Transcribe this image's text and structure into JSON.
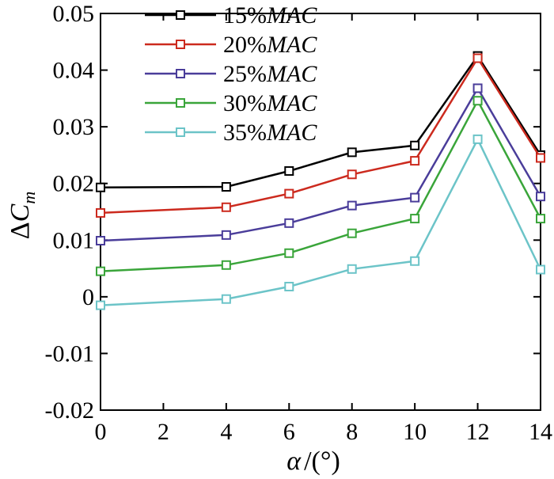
{
  "chart_data": {
    "type": "line",
    "title": "",
    "xlabel_symbol": "α",
    "xlabel_unit": "/(°)",
    "ylabel_prefix": "Δ",
    "ylabel_main": "C",
    "ylabel_sub": "m",
    "xlim": [
      0,
      14
    ],
    "ylim": [
      -0.02,
      0.05
    ],
    "xticks": [
      0,
      2,
      4,
      6,
      8,
      10,
      12,
      14
    ],
    "xtick_labels": [
      "0",
      "2",
      "4",
      "6",
      "8",
      "10",
      "12",
      "14"
    ],
    "yticks": [
      -0.02,
      -0.01,
      0,
      0.01,
      0.02,
      0.03,
      0.04,
      0.05
    ],
    "ytick_labels": [
      "-0.02",
      "-0.01",
      "0",
      "0.01",
      "0.02",
      "0.03",
      "0.04",
      "0.05"
    ],
    "grid": false,
    "legend_position": "top-left",
    "x": [
      0,
      4,
      6,
      8,
      10,
      12,
      14
    ],
    "series": [
      {
        "name": "15%",
        "name_suffix": "MAC",
        "color": "#000000",
        "values": [
          0.0193,
          0.0194,
          0.0222,
          0.0255,
          0.0267,
          0.0425,
          0.025
        ]
      },
      {
        "name": "20%",
        "name_suffix": "MAC",
        "color": "#cc2a1e",
        "values": [
          0.0148,
          0.0158,
          0.0182,
          0.0216,
          0.024,
          0.0421,
          0.0245
        ]
      },
      {
        "name": "25%",
        "name_suffix": "MAC",
        "color": "#4a3d9a",
        "values": [
          0.0099,
          0.0109,
          0.013,
          0.0161,
          0.0175,
          0.0368,
          0.0177
        ]
      },
      {
        "name": "30%",
        "name_suffix": "MAC",
        "color": "#3aa53a",
        "values": [
          0.0045,
          0.0056,
          0.0077,
          0.0112,
          0.0138,
          0.0346,
          0.0138
        ]
      },
      {
        "name": "35%",
        "name_suffix": "MAC",
        "color": "#6cc4c8",
        "values": [
          -0.0015,
          -0.0004,
          0.0018,
          0.0049,
          0.0063,
          0.0278,
          0.0048
        ]
      }
    ]
  }
}
